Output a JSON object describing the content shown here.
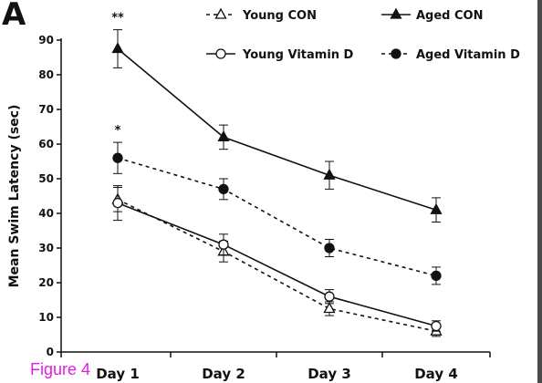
{
  "panel_letter": "A",
  "figure_label": "Figure 4",
  "chart_data": {
    "type": "line",
    "ylabel": "Mean Swim Latency (sec)",
    "xlabel": "",
    "categories": [
      "Day 1",
      "Day 2",
      "Day 3",
      "Day 4"
    ],
    "ylim": [
      0,
      90
    ],
    "yticks": [
      0,
      10,
      20,
      30,
      40,
      50,
      60,
      70,
      80,
      90
    ],
    "series": [
      {
        "name": "Young CON",
        "values": [
          44,
          29,
          12.5,
          6
        ],
        "errors": [
          3.5,
          3,
          2,
          1.5
        ],
        "marker": "open-triangle",
        "line": "dashed"
      },
      {
        "name": "Aged CON",
        "values": [
          87.5,
          62,
          51,
          41
        ],
        "errors": [
          5.5,
          3.5,
          4,
          3.5
        ],
        "marker": "filled-triangle",
        "line": "solid"
      },
      {
        "name": "Young Vitamin D",
        "values": [
          43,
          31,
          16,
          7.5
        ],
        "errors": [
          5,
          3,
          2,
          1.5
        ],
        "marker": "open-circle",
        "line": "solid"
      },
      {
        "name": "Aged Vitamin D",
        "values": [
          56,
          47,
          30,
          22
        ],
        "errors": [
          4.5,
          3,
          2.5,
          2.5
        ],
        "marker": "filled-circle",
        "line": "dashed"
      }
    ],
    "annotations": [
      {
        "text": "**",
        "x": "Day 1",
        "series": "Aged CON"
      },
      {
        "text": "*",
        "x": "Day 1",
        "series": "Aged Vitamin D"
      }
    ],
    "legend_position": "top",
    "grid": false
  }
}
